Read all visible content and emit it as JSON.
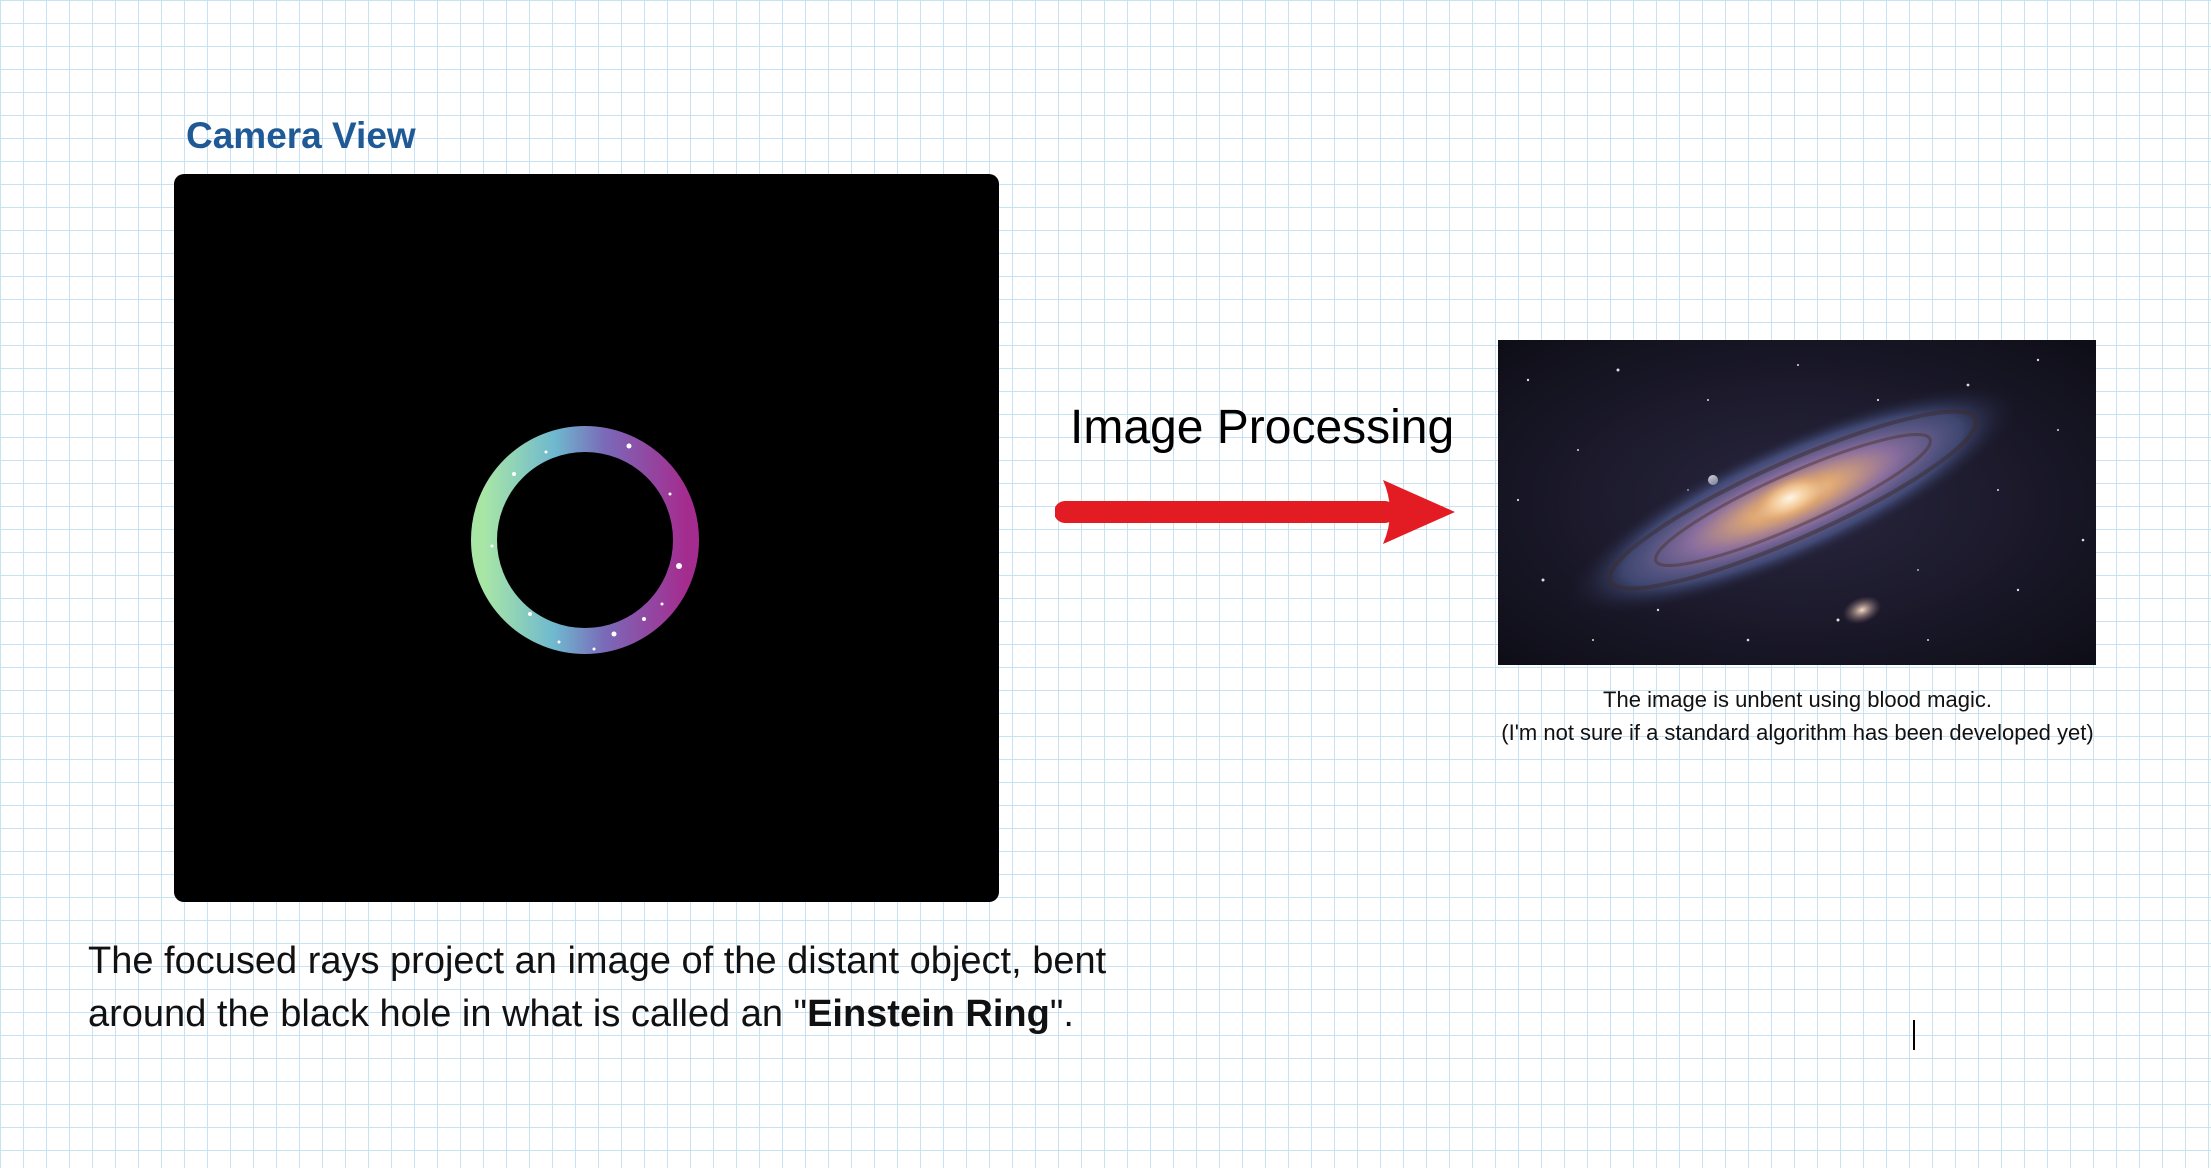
{
  "camera": {
    "title": "Camera View"
  },
  "processing": {
    "label": "Image Processing",
    "arrow_color": "#e31b23"
  },
  "galaxy": {
    "caption_line1": "The image is unbent using blood magic.",
    "caption_line2": "(I'm not sure if a standard algorithm has been developed yet)"
  },
  "explanation": {
    "line1": "The focused rays project an image of the distant object, bent",
    "line2_prefix": "around the black hole in what is called an \"",
    "emphasis": "Einstein Ring",
    "line2_suffix": "\"."
  },
  "colors": {
    "grid": "#c9e2f3",
    "title": "#1f5a96",
    "ring_left": "#9ee3a8",
    "ring_mid": "#5aa8d4",
    "ring_right": "#a23c9b"
  }
}
